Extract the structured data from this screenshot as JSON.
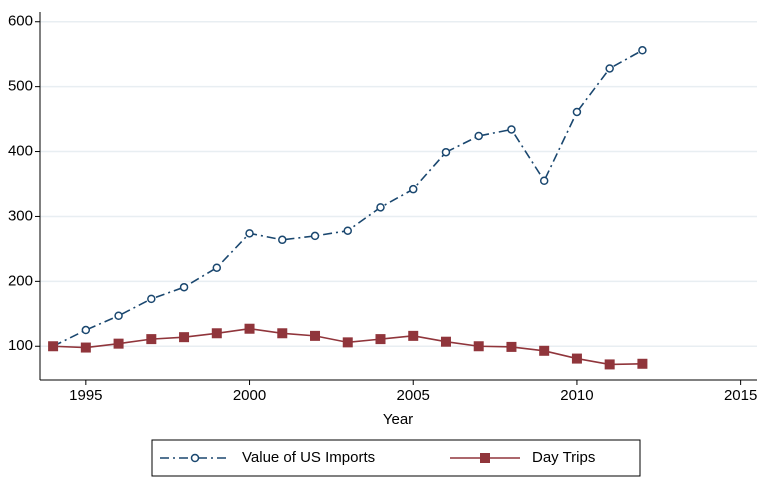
{
  "chart_data": {
    "type": "line",
    "x_label": "Year",
    "x": [
      1994,
      1995,
      1996,
      1997,
      1998,
      1999,
      2000,
      2001,
      2002,
      2003,
      2004,
      2005,
      2006,
      2007,
      2008,
      2009,
      2010,
      2011,
      2012
    ],
    "series": [
      {
        "name": "Value of US Imports",
        "color": "#1a476f",
        "marker": "circle",
        "dash": "dashdot",
        "values": [
          100,
          125,
          147,
          173,
          191,
          221,
          274,
          264,
          270,
          278,
          314,
          342,
          399,
          424,
          434,
          355,
          461,
          528,
          556
        ]
      },
      {
        "name": "Day Trips",
        "color": "#90353b",
        "marker": "square",
        "dash": "solid",
        "values": [
          100,
          98,
          104,
          111,
          114,
          120,
          127,
          120,
          116,
          106,
          111,
          116,
          107,
          100,
          99,
          93,
          81,
          72,
          73
        ]
      }
    ],
    "xlim": [
      1993.6,
      2015.5
    ],
    "xticks": [
      1995,
      2000,
      2005,
      2010,
      2015
    ],
    "ylim": [
      48,
      615
    ],
    "yticks": [
      100,
      200,
      300,
      400,
      500,
      600
    ],
    "grid": true,
    "legend": "bottom"
  }
}
